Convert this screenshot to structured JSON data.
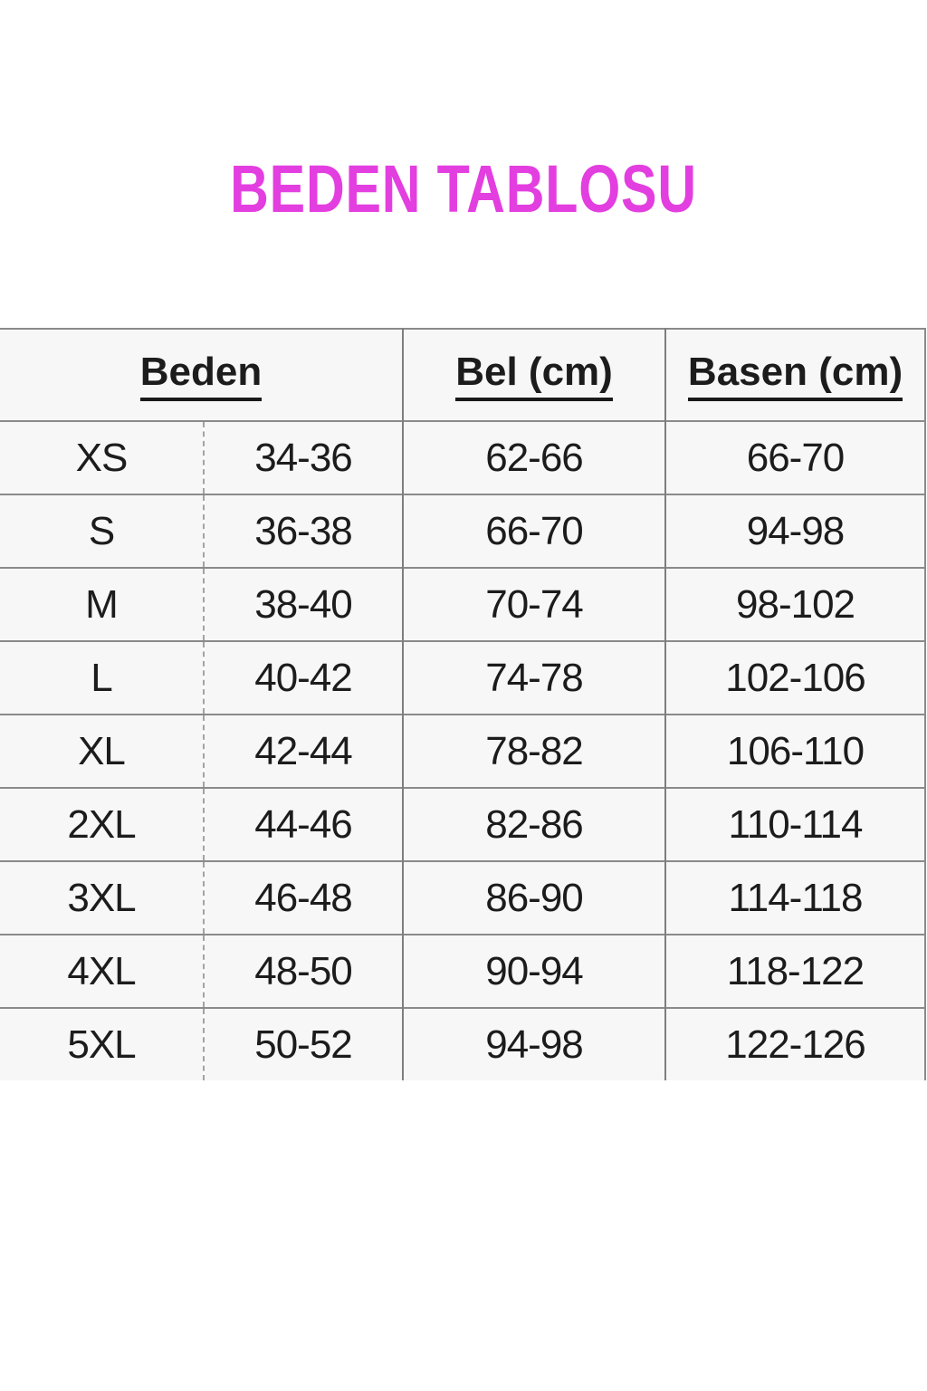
{
  "title": "BEDEN TABLOSU",
  "colors": {
    "title_text": "#e33ee0",
    "cell_background": "#f7f7f7",
    "grid_line": "#8a8a8a",
    "table_text": "#1c1c1c",
    "page_background": "#ffffff"
  },
  "table": {
    "headers": {
      "size": "Beden",
      "waist": "Bel (cm)",
      "hips": "Basen (cm)"
    },
    "rows": [
      {
        "size": "XS",
        "range": "34-36",
        "waist": "62-66",
        "hips": "66-70"
      },
      {
        "size": "S",
        "range": "36-38",
        "waist": "66-70",
        "hips": "94-98"
      },
      {
        "size": "M",
        "range": "38-40",
        "waist": "70-74",
        "hips": "98-102"
      },
      {
        "size": "L",
        "range": "40-42",
        "waist": "74-78",
        "hips": "102-106"
      },
      {
        "size": "XL",
        "range": "42-44",
        "waist": "78-82",
        "hips": "106-110"
      },
      {
        "size": "2XL",
        "range": "44-46",
        "waist": "82-86",
        "hips": "110-114"
      },
      {
        "size": "3XL",
        "range": "46-48",
        "waist": "86-90",
        "hips": "114-118"
      },
      {
        "size": "4XL",
        "range": "48-50",
        "waist": "90-94",
        "hips": "118-122"
      },
      {
        "size": "5XL",
        "range": "50-52",
        "waist": "94-98",
        "hips": "122-126"
      }
    ]
  }
}
